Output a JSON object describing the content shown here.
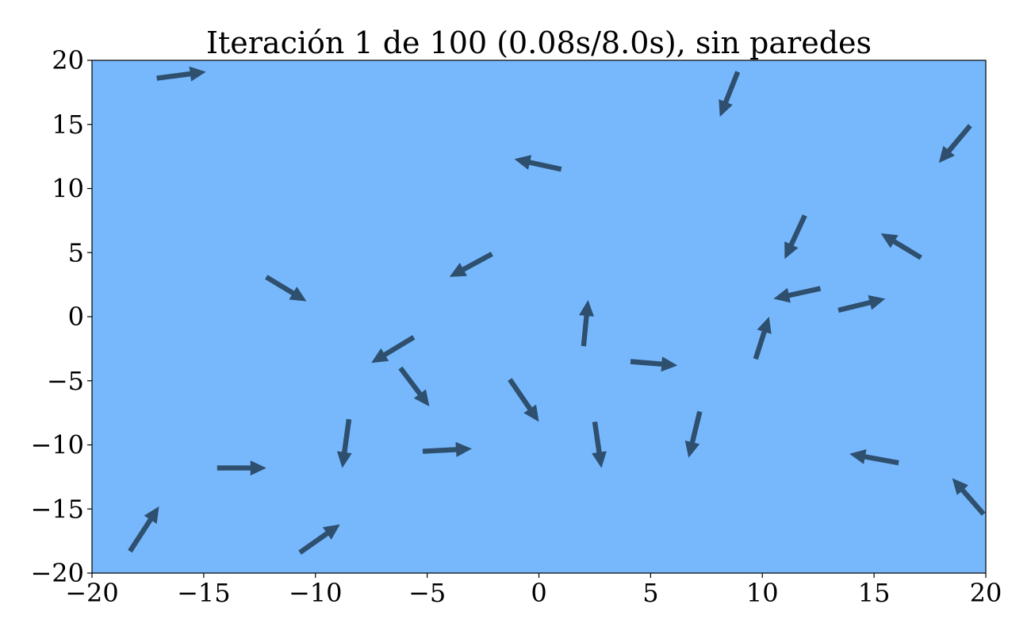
{
  "chart_data": {
    "type": "quiver",
    "title": "Iteración 1 de 100 (0.08s/8.0s), sin paredes",
    "xlabel": "",
    "ylabel": "",
    "xlim": [
      -20,
      20
    ],
    "ylim": [
      -20,
      20
    ],
    "xticks": [
      -20,
      -15,
      -10,
      -5,
      0,
      5,
      10,
      15,
      20
    ],
    "yticks": [
      -20,
      -15,
      -10,
      -5,
      0,
      5,
      10,
      15,
      20
    ],
    "xtick_labels": [
      "−20",
      "−15",
      "−10",
      "−5",
      "0",
      "5",
      "10",
      "15",
      "20"
    ],
    "ytick_labels": [
      "−20",
      "−15",
      "−10",
      "−5",
      "0",
      "5",
      "10",
      "15",
      "20"
    ],
    "grid": false,
    "colors": {
      "background": "#77b8fd",
      "arrow": "#2e4f6d"
    },
    "arrows": [
      {
        "x": -17.1,
        "y": 18.6,
        "u": 2.2,
        "v": 0.5
      },
      {
        "x": 8.9,
        "y": 19.1,
        "u": -0.8,
        "v": -3.5
      },
      {
        "x": 19.3,
        "y": 14.9,
        "u": -1.4,
        "v": -2.9
      },
      {
        "x": 1.0,
        "y": 11.5,
        "u": -2.1,
        "v": 0.8
      },
      {
        "x": 11.9,
        "y": 7.9,
        "u": -0.9,
        "v": -3.4
      },
      {
        "x": 17.1,
        "y": 4.6,
        "u": -1.8,
        "v": 1.9
      },
      {
        "x": -12.2,
        "y": 3.1,
        "u": 1.8,
        "v": -1.9
      },
      {
        "x": -2.1,
        "y": 4.9,
        "u": -1.9,
        "v": -1.8
      },
      {
        "x": 12.6,
        "y": 2.2,
        "u": -2.1,
        "v": -0.8
      },
      {
        "x": 13.4,
        "y": 0.5,
        "u": 2.1,
        "v": 0.9
      },
      {
        "x": 2.0,
        "y": -2.3,
        "u": 0.2,
        "v": 3.6
      },
      {
        "x": -5.6,
        "y": -1.6,
        "u": -1.9,
        "v": -2.0
      },
      {
        "x": 9.7,
        "y": -3.3,
        "u": 0.6,
        "v": 3.3
      },
      {
        "x": 4.1,
        "y": -3.5,
        "u": 2.1,
        "v": -0.3
      },
      {
        "x": -6.2,
        "y": -4.0,
        "u": 1.3,
        "v": -3.0
      },
      {
        "x": -1.3,
        "y": -4.9,
        "u": 1.3,
        "v": -3.3
      },
      {
        "x": 7.2,
        "y": -7.4,
        "u": -0.5,
        "v": -3.6
      },
      {
        "x": -8.5,
        "y": -8.0,
        "u": -0.3,
        "v": -3.8
      },
      {
        "x": 2.5,
        "y": -8.2,
        "u": 0.3,
        "v": -3.6
      },
      {
        "x": -5.2,
        "y": -10.5,
        "u": 2.2,
        "v": 0.2
      },
      {
        "x": -14.4,
        "y": -11.8,
        "u": 2.2,
        "v": 0.0
      },
      {
        "x": 16.1,
        "y": -11.4,
        "u": -2.2,
        "v": 0.7
      },
      {
        "x": 19.9,
        "y": -15.4,
        "u": -1.4,
        "v": 2.8
      },
      {
        "x": -18.3,
        "y": -18.3,
        "u": 1.3,
        "v": 3.5
      },
      {
        "x": -10.7,
        "y": -18.4,
        "u": 1.8,
        "v": 2.2
      }
    ]
  }
}
